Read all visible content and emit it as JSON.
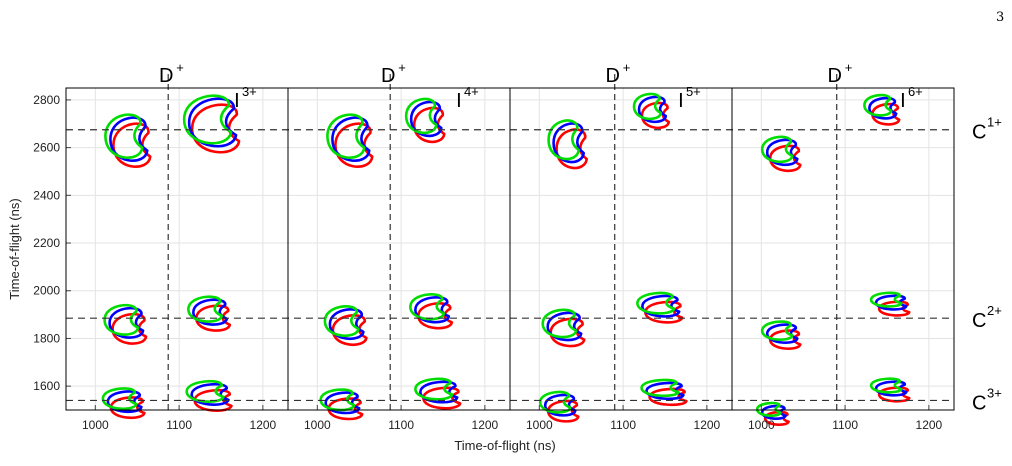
{
  "page_number": "3",
  "chart_data": {
    "type": "contour",
    "xlabel": "Time-of-flight (ns)",
    "ylabel": "Time-of-flight (ns)",
    "ylim": [
      1500,
      2850
    ],
    "y_ticks": [
      1600,
      1800,
      2000,
      2200,
      2400,
      2600,
      2800
    ],
    "grid": true,
    "series_colors": [
      "#ff0000",
      "#0000ff",
      "#00dd00"
    ],
    "reference_lines": [
      {
        "axis": "y",
        "value": 2675,
        "label": "C",
        "charge": "1+"
      },
      {
        "axis": "y",
        "value": 1885,
        "label": "C",
        "charge": "2+"
      },
      {
        "axis": "y",
        "value": 1540,
        "label": "C",
        "charge": "3+"
      }
    ],
    "panels": [
      {
        "x_ticks": [
          1000,
          1100,
          1200
        ],
        "xlim": [
          965,
          1230
        ],
        "d_line_x": 1087,
        "labels": {
          "d": "D",
          "d_charge": "+",
          "ion": "I",
          "ion_charge": "3+"
        },
        "islands": [
          {
            "x": 1040,
            "y": 2635,
            "rx": 22,
            "ry": 95
          },
          {
            "x": 1140,
            "y": 2705,
            "rx": 28,
            "ry": 105
          },
          {
            "x": 1037,
            "y": 1865,
            "rx": 20,
            "ry": 65
          },
          {
            "x": 1137,
            "y": 1910,
            "rx": 20,
            "ry": 55
          },
          {
            "x": 1035,
            "y": 1535,
            "rx": 20,
            "ry": 45
          },
          {
            "x": 1137,
            "y": 1565,
            "rx": 22,
            "ry": 45
          }
        ]
      },
      {
        "x_ticks": [
          1000,
          1100,
          1200
        ],
        "xlim": [
          965,
          1230
        ],
        "d_line_x": 1087,
        "labels": {
          "d": "D",
          "d_charge": "+",
          "ion": "I",
          "ion_charge": "4+"
        },
        "islands": [
          {
            "x": 1040,
            "y": 2635,
            "rx": 22,
            "ry": 95
          },
          {
            "x": 1130,
            "y": 2720,
            "rx": 18,
            "ry": 75
          },
          {
            "x": 1035,
            "y": 1860,
            "rx": 20,
            "ry": 65
          },
          {
            "x": 1137,
            "y": 1920,
            "rx": 20,
            "ry": 55
          },
          {
            "x": 1030,
            "y": 1530,
            "rx": 20,
            "ry": 45
          },
          {
            "x": 1145,
            "y": 1575,
            "rx": 22,
            "ry": 45
          }
        ]
      },
      {
        "x_ticks": [
          1000,
          1100,
          1200
        ],
        "xlim": [
          965,
          1230
        ],
        "d_line_x": 1090,
        "labels": {
          "d": "D",
          "d_charge": "+",
          "ion": "I",
          "ion_charge": "5+"
        },
        "islands": [
          {
            "x": 1035,
            "y": 2620,
            "rx": 18,
            "ry": 85
          },
          {
            "x": 1135,
            "y": 2760,
            "rx": 16,
            "ry": 55
          },
          {
            "x": 1030,
            "y": 1850,
            "rx": 20,
            "ry": 60
          },
          {
            "x": 1145,
            "y": 1935,
            "rx": 22,
            "ry": 45
          },
          {
            "x": 1025,
            "y": 1520,
            "rx": 18,
            "ry": 45
          },
          {
            "x": 1150,
            "y": 1580,
            "rx": 22,
            "ry": 35
          }
        ]
      },
      {
        "x_ticks": [
          1000,
          1100,
          1200
        ],
        "xlim": [
          965,
          1230
        ],
        "d_line_x": 1090,
        "labels": {
          "d": "D",
          "d_charge": "+",
          "ion": "I",
          "ion_charge": "6+"
        },
        "islands": [
          {
            "x": 1025,
            "y": 2580,
            "rx": 18,
            "ry": 55
          },
          {
            "x": 1145,
            "y": 2765,
            "rx": 16,
            "ry": 45
          },
          {
            "x": 1025,
            "y": 1820,
            "rx": 18,
            "ry": 40
          },
          {
            "x": 1155,
            "y": 1950,
            "rx": 18,
            "ry": 30
          },
          {
            "x": 1015,
            "y": 1490,
            "rx": 14,
            "ry": 28
          },
          {
            "x": 1155,
            "y": 1590,
            "rx": 18,
            "ry": 30
          }
        ]
      }
    ]
  }
}
